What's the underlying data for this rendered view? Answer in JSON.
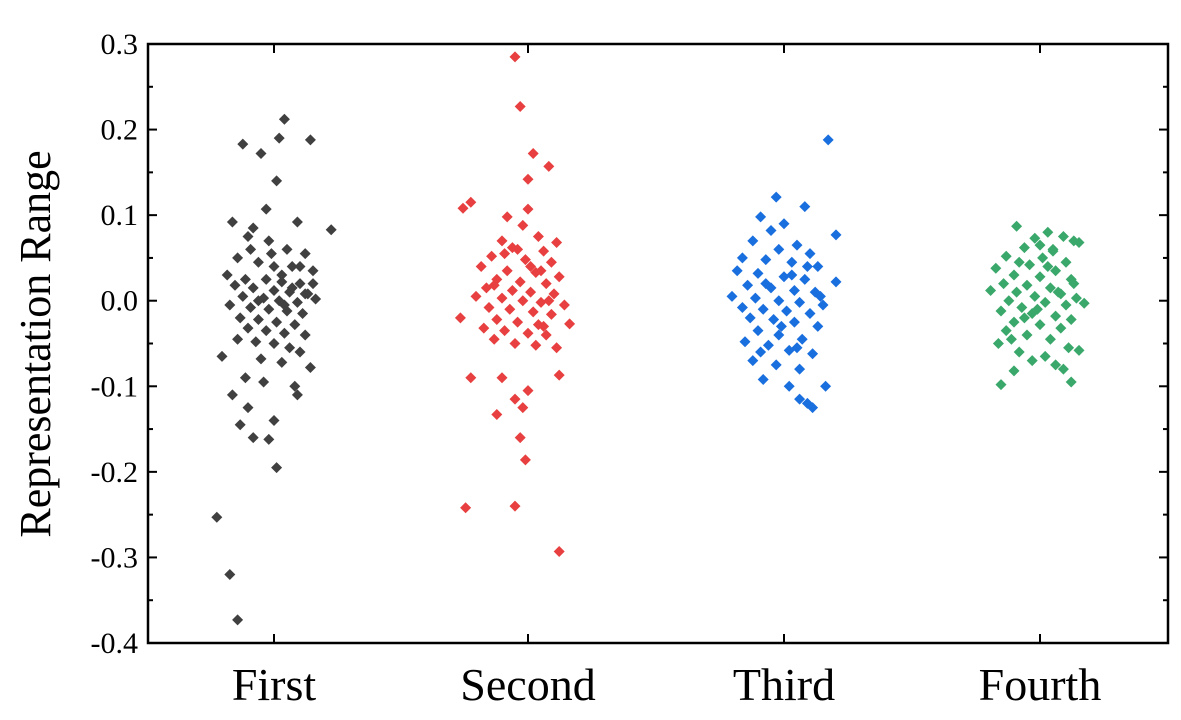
{
  "chart_data": {
    "type": "scatter",
    "ylabel": "Representation Range",
    "xlabel": "",
    "ylim": [
      -0.4,
      0.3
    ],
    "yticks": [
      "0.3",
      "0.2",
      "0.1",
      "0.0",
      "-0.1",
      "-0.2",
      "-0.3",
      "-0.4"
    ],
    "categories": [
      "First",
      "Second",
      "Third",
      "Fourth"
    ],
    "grid": false,
    "marker": "diamond",
    "series": [
      {
        "category": "First",
        "color": "#404040",
        "points": [
          [
            -0.12,
            0.183
          ],
          [
            0.04,
            0.212
          ],
          [
            -0.05,
            0.172
          ],
          [
            0.02,
            0.19
          ],
          [
            0.14,
            0.188
          ],
          [
            0.01,
            0.14
          ],
          [
            -0.16,
            0.092
          ],
          [
            -0.03,
            0.107
          ],
          [
            0.22,
            0.083
          ],
          [
            0.09,
            0.092
          ],
          [
            -0.08,
            0.085
          ],
          [
            -0.1,
            0.075
          ],
          [
            -0.02,
            0.07
          ],
          [
            0.05,
            0.06
          ],
          [
            0.12,
            0.055
          ],
          [
            -0.14,
            0.05
          ],
          [
            -0.06,
            0.045
          ],
          [
            0.0,
            0.04
          ],
          [
            0.07,
            0.04
          ],
          [
            0.15,
            0.035
          ],
          [
            -0.18,
            0.03
          ],
          [
            -0.11,
            0.025
          ],
          [
            -0.03,
            0.025
          ],
          [
            0.03,
            0.022
          ],
          [
            0.1,
            0.02
          ],
          [
            -0.15,
            0.018
          ],
          [
            -0.08,
            0.015
          ],
          [
            0.0,
            0.012
          ],
          [
            0.06,
            0.01
          ],
          [
            0.13,
            0.008
          ],
          [
            -0.12,
            0.005
          ],
          [
            -0.04,
            0.003
          ],
          [
            0.02,
            0.0
          ],
          [
            0.09,
            -0.002
          ],
          [
            0.16,
            0.002
          ],
          [
            -0.17,
            -0.005
          ],
          [
            -0.09,
            -0.008
          ],
          [
            -0.02,
            -0.01
          ],
          [
            0.05,
            -0.012
          ],
          [
            0.11,
            -0.015
          ],
          [
            -0.13,
            -0.02
          ],
          [
            -0.06,
            -0.022
          ],
          [
            0.01,
            -0.025
          ],
          [
            0.08,
            -0.028
          ],
          [
            -0.1,
            -0.032
          ],
          [
            -0.03,
            -0.035
          ],
          [
            0.04,
            -0.038
          ],
          [
            0.12,
            -0.04
          ],
          [
            -0.14,
            -0.045
          ],
          [
            -0.07,
            -0.048
          ],
          [
            0.0,
            -0.05
          ],
          [
            0.06,
            -0.055
          ],
          [
            0.1,
            -0.06
          ],
          [
            -0.2,
            -0.065
          ],
          [
            -0.05,
            -0.068
          ],
          [
            0.03,
            -0.072
          ],
          [
            0.14,
            -0.078
          ],
          [
            -0.11,
            -0.09
          ],
          [
            -0.04,
            -0.095
          ],
          [
            0.08,
            -0.1
          ],
          [
            -0.16,
            -0.11
          ],
          [
            0.09,
            -0.11
          ],
          [
            -0.1,
            -0.125
          ],
          [
            0.0,
            -0.14
          ],
          [
            -0.13,
            -0.145
          ],
          [
            -0.08,
            -0.16
          ],
          [
            -0.02,
            -0.162
          ],
          [
            0.01,
            -0.195
          ],
          [
            -0.22,
            -0.253
          ],
          [
            -0.17,
            -0.32
          ],
          [
            -0.14,
            -0.373
          ],
          [
            0.03,
            0.03
          ],
          [
            0.07,
            0.015
          ],
          [
            -0.06,
            0.0
          ],
          [
            0.1,
            0.04
          ],
          [
            -0.01,
            0.055
          ],
          [
            0.15,
            0.02
          ],
          [
            -0.09,
            0.06
          ],
          [
            0.04,
            -0.005
          ],
          [
            0.12,
            0.008
          ]
        ]
      },
      {
        "category": "Second",
        "color": "#e84040",
        "points": [
          [
            -0.05,
            0.285
          ],
          [
            -0.03,
            0.227
          ],
          [
            0.02,
            0.172
          ],
          [
            0.08,
            0.157
          ],
          [
            0.0,
            0.142
          ],
          [
            -0.22,
            0.115
          ],
          [
            -0.25,
            0.108
          ],
          [
            0.0,
            0.107
          ],
          [
            -0.08,
            0.098
          ],
          [
            -0.02,
            0.088
          ],
          [
            0.04,
            0.075
          ],
          [
            -0.1,
            0.07
          ],
          [
            0.11,
            0.068
          ],
          [
            -0.06,
            0.062
          ],
          [
            0.06,
            0.058
          ],
          [
            -0.14,
            0.052
          ],
          [
            -0.01,
            0.048
          ],
          [
            0.09,
            0.045
          ],
          [
            -0.18,
            0.04
          ],
          [
            -0.08,
            0.035
          ],
          [
            0.03,
            0.033
          ],
          [
            0.12,
            0.028
          ],
          [
            -0.12,
            0.025
          ],
          [
            -0.03,
            0.022
          ],
          [
            0.07,
            0.02
          ],
          [
            -0.16,
            0.015
          ],
          [
            -0.06,
            0.012
          ],
          [
            0.01,
            0.01
          ],
          [
            0.1,
            0.008
          ],
          [
            -0.2,
            0.005
          ],
          [
            -0.1,
            0.003
          ],
          [
            -0.02,
            0.0
          ],
          [
            0.05,
            -0.002
          ],
          [
            0.14,
            -0.005
          ],
          [
            -0.15,
            -0.008
          ],
          [
            -0.07,
            -0.01
          ],
          [
            0.02,
            -0.013
          ],
          [
            0.09,
            -0.016
          ],
          [
            -0.26,
            -0.02
          ],
          [
            -0.12,
            -0.022
          ],
          [
            -0.04,
            -0.025
          ],
          [
            0.04,
            -0.028
          ],
          [
            0.16,
            -0.027
          ],
          [
            -0.17,
            -0.032
          ],
          [
            -0.09,
            -0.035
          ],
          [
            0.0,
            -0.038
          ],
          [
            0.07,
            -0.04
          ],
          [
            -0.13,
            -0.045
          ],
          [
            -0.05,
            -0.05
          ],
          [
            0.03,
            -0.052
          ],
          [
            0.11,
            -0.055
          ],
          [
            -0.22,
            -0.09
          ],
          [
            0.12,
            -0.087
          ],
          [
            -0.1,
            -0.09
          ],
          [
            0.0,
            -0.105
          ],
          [
            -0.05,
            -0.115
          ],
          [
            -0.12,
            -0.133
          ],
          [
            -0.02,
            -0.125
          ],
          [
            -0.03,
            -0.16
          ],
          [
            -0.01,
            -0.186
          ],
          [
            -0.24,
            -0.242
          ],
          [
            -0.05,
            -0.24
          ],
          [
            0.12,
            -0.293
          ],
          [
            0.05,
            0.035
          ],
          [
            -0.09,
            0.055
          ],
          [
            0.08,
            0.0
          ],
          [
            -0.13,
            0.018
          ],
          [
            0.01,
            0.04
          ],
          [
            0.06,
            -0.03
          ],
          [
            -0.04,
            0.06
          ]
        ]
      },
      {
        "category": "Third",
        "color": "#1a6fdf",
        "points": [
          [
            0.17,
            0.188
          ],
          [
            -0.03,
            0.121
          ],
          [
            0.08,
            0.11
          ],
          [
            -0.09,
            0.098
          ],
          [
            0.0,
            0.09
          ],
          [
            -0.05,
            0.082
          ],
          [
            0.2,
            0.077
          ],
          [
            -0.12,
            0.07
          ],
          [
            0.05,
            0.065
          ],
          [
            -0.02,
            0.06
          ],
          [
            0.1,
            0.055
          ],
          [
            -0.16,
            0.05
          ],
          [
            -0.07,
            0.048
          ],
          [
            0.03,
            0.045
          ],
          [
            0.13,
            0.04
          ],
          [
            -0.18,
            0.035
          ],
          [
            -0.1,
            0.032
          ],
          [
            0.0,
            0.028
          ],
          [
            0.08,
            0.025
          ],
          [
            0.2,
            0.022
          ],
          [
            -0.14,
            0.018
          ],
          [
            -0.05,
            0.015
          ],
          [
            0.04,
            0.012
          ],
          [
            0.12,
            0.01
          ],
          [
            -0.2,
            0.005
          ],
          [
            -0.11,
            0.003
          ],
          [
            -0.02,
            0.0
          ],
          [
            0.06,
            -0.002
          ],
          [
            0.15,
            -0.005
          ],
          [
            -0.16,
            -0.008
          ],
          [
            -0.08,
            -0.01
          ],
          [
            0.01,
            -0.012
          ],
          [
            0.1,
            -0.015
          ],
          [
            -0.13,
            -0.02
          ],
          [
            -0.04,
            -0.022
          ],
          [
            0.04,
            -0.025
          ],
          [
            0.13,
            -0.03
          ],
          [
            -0.1,
            -0.035
          ],
          [
            -0.02,
            -0.04
          ],
          [
            0.07,
            -0.045
          ],
          [
            -0.15,
            -0.048
          ],
          [
            -0.06,
            -0.052
          ],
          [
            0.02,
            -0.058
          ],
          [
            0.11,
            -0.062
          ],
          [
            -0.12,
            -0.07
          ],
          [
            -0.03,
            -0.075
          ],
          [
            0.06,
            -0.08
          ],
          [
            -0.08,
            -0.092
          ],
          [
            0.16,
            -0.1
          ],
          [
            0.02,
            -0.1
          ],
          [
            0.06,
            -0.115
          ],
          [
            0.09,
            -0.12
          ],
          [
            0.11,
            -0.125
          ],
          [
            0.03,
            0.03
          ],
          [
            -0.07,
            0.02
          ],
          [
            0.09,
            0.04
          ],
          [
            -0.01,
            -0.03
          ],
          [
            0.14,
            0.005
          ],
          [
            -0.09,
            -0.06
          ],
          [
            0.05,
            -0.055
          ]
        ]
      },
      {
        "category": "Fourth",
        "color": "#3aa86b",
        "points": [
          [
            -0.09,
            0.087
          ],
          [
            0.03,
            0.08
          ],
          [
            0.09,
            0.075
          ],
          [
            -0.02,
            0.073
          ],
          [
            0.13,
            0.07
          ],
          [
            0.15,
            0.068
          ],
          [
            -0.06,
            0.062
          ],
          [
            0.05,
            0.058
          ],
          [
            -0.13,
            0.052
          ],
          [
            0.01,
            0.05
          ],
          [
            0.1,
            0.045
          ],
          [
            -0.04,
            0.042
          ],
          [
            -0.17,
            0.038
          ],
          [
            0.06,
            0.035
          ],
          [
            -0.1,
            0.03
          ],
          [
            0.0,
            0.028
          ],
          [
            0.12,
            0.025
          ],
          [
            -0.14,
            0.02
          ],
          [
            -0.05,
            0.018
          ],
          [
            0.04,
            0.015
          ],
          [
            -0.19,
            0.012
          ],
          [
            -0.09,
            0.01
          ],
          [
            0.08,
            0.008
          ],
          [
            -0.02,
            0.005
          ],
          [
            0.14,
            0.003
          ],
          [
            -0.12,
            0.0
          ],
          [
            0.02,
            -0.002
          ],
          [
            0.1,
            -0.005
          ],
          [
            -0.07,
            -0.008
          ],
          [
            0.17,
            -0.003
          ],
          [
            -0.15,
            -0.012
          ],
          [
            -0.03,
            -0.015
          ],
          [
            0.06,
            -0.018
          ],
          [
            0.12,
            -0.022
          ],
          [
            -0.1,
            -0.025
          ],
          [
            0.0,
            -0.028
          ],
          [
            0.08,
            -0.032
          ],
          [
            -0.13,
            -0.035
          ],
          [
            -0.05,
            -0.04
          ],
          [
            0.04,
            -0.045
          ],
          [
            -0.16,
            -0.05
          ],
          [
            0.11,
            -0.055
          ],
          [
            0.15,
            -0.058
          ],
          [
            -0.08,
            -0.06
          ],
          [
            0.02,
            -0.065
          ],
          [
            -0.03,
            -0.07
          ],
          [
            0.06,
            -0.075
          ],
          [
            0.09,
            -0.08
          ],
          [
            -0.1,
            -0.082
          ],
          [
            0.12,
            -0.095
          ],
          [
            -0.15,
            -0.098
          ],
          [
            0.03,
            0.04
          ],
          [
            -0.08,
            0.045
          ],
          [
            0.07,
            0.01
          ],
          [
            -0.01,
            -0.01
          ],
          [
            0.05,
            0.06
          ],
          [
            -0.11,
            -0.045
          ],
          [
            0.13,
            0.02
          ],
          [
            0.0,
            0.065
          ],
          [
            -0.06,
            -0.02
          ]
        ]
      }
    ]
  }
}
